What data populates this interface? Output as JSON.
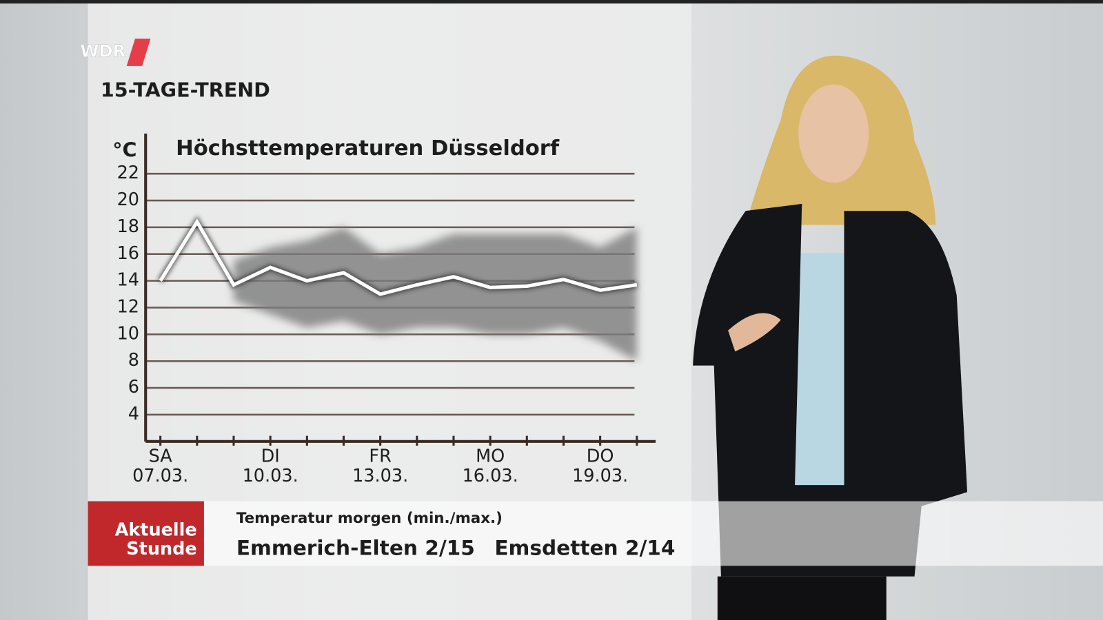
{
  "logo": "WDR",
  "heading": "15-TAGE-TREND",
  "chart_data": {
    "type": "line",
    "title": "Höchsttemperaturen Düsseldorf",
    "y_unit": "°C",
    "categories": [
      "07.03.",
      null,
      null,
      "10.03.",
      null,
      null,
      "13.03.",
      null,
      null,
      "16.03.",
      null,
      null,
      "19.03.",
      null
    ],
    "weekdays": [
      "SA",
      null,
      null,
      "DI",
      null,
      null,
      "FR",
      null,
      null,
      "MO",
      null,
      null,
      "DO",
      null
    ],
    "values": [
      14,
      18.4,
      13.7,
      15,
      14,
      14.6,
      13,
      13.7,
      14.3,
      13.5,
      13.6,
      14.1,
      13.3,
      13.7
    ],
    "band_low": [
      null,
      null,
      12.5,
      11.5,
      10.5,
      11,
      10,
      10.5,
      10.5,
      10,
      10,
      10.5,
      9.5,
      8
    ],
    "band_high": [
      null,
      null,
      15.5,
      16.5,
      17,
      18,
      16,
      16.5,
      17.5,
      17.5,
      17.5,
      17.5,
      16.5,
      18
    ],
    "color": "#ffffff",
    "band_color": "#7b7b7b",
    "ylim": [
      2,
      25
    ],
    "yticks": [
      4,
      6,
      8,
      10,
      12,
      14,
      16,
      18,
      20,
      22
    ],
    "grid": true
  },
  "ticker": {
    "program": [
      "Aktuelle",
      "Stunde"
    ],
    "caption": "Temperatur morgen (min./max.)",
    "items": [
      "Emmerich-Elten 2/15",
      "Emsdetten 2/14"
    ]
  }
}
